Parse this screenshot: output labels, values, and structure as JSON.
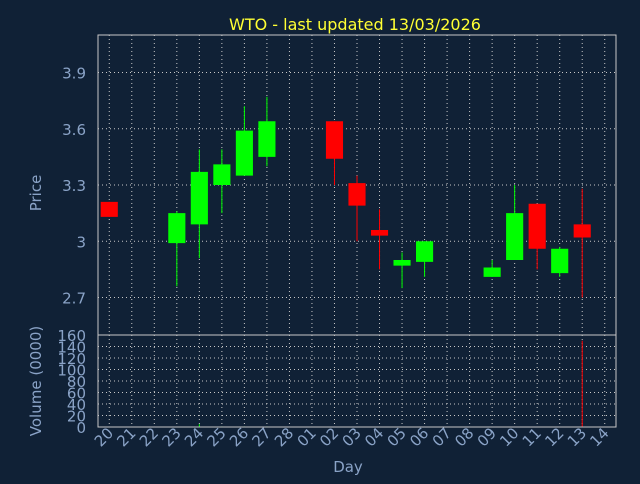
{
  "chart_data": {
    "type": "candlestick",
    "title": "WTO - last updated 13/03/2026",
    "xlabel": "Day",
    "ylabel_price": "Price",
    "ylabel_volume": "Volume (0000)",
    "price_ticks": [
      "2.7",
      "3",
      "3.3",
      "3.6",
      "3.9"
    ],
    "price_tick_values": [
      2.7,
      3.0,
      3.3,
      3.6,
      3.9
    ],
    "price_ylim": [
      2.5,
      4.1
    ],
    "volume_ticks": [
      "0",
      "20",
      "40",
      "60",
      "80",
      "100",
      "120",
      "140",
      "160"
    ],
    "volume_tick_values": [
      0,
      20,
      40,
      60,
      80,
      100,
      120,
      140,
      160
    ],
    "volume_ylim": [
      0,
      160
    ],
    "x_tick_labels": [
      "20",
      "21",
      "22",
      "23",
      "24",
      "25",
      "26",
      "27",
      "28",
      "01",
      "02",
      "03",
      "04",
      "05",
      "06",
      "07",
      "08",
      "09",
      "10",
      "11",
      "12",
      "13",
      "14"
    ],
    "grid": true,
    "colors": {
      "background": "#102136",
      "axis_text": "#8aa3c7",
      "title": "#ffff33",
      "grid": "#c8c8c8",
      "up": "#00ff00",
      "down": "#ff0000"
    },
    "candles": [
      {
        "day": "20",
        "open": 3.21,
        "high": 3.21,
        "low": 3.13,
        "close": 3.13,
        "volume": 0
      },
      {
        "day": "23",
        "open": 2.99,
        "high": 3.16,
        "low": 2.76,
        "close": 3.15,
        "volume": 0
      },
      {
        "day": "24",
        "open": 3.09,
        "high": 3.49,
        "low": 2.91,
        "close": 3.37,
        "volume": 5
      },
      {
        "day": "25",
        "open": 3.3,
        "high": 3.49,
        "low": 3.15,
        "close": 3.41,
        "volume": 1
      },
      {
        "day": "26",
        "open": 3.35,
        "high": 3.72,
        "low": 3.35,
        "close": 3.59,
        "volume": 1
      },
      {
        "day": "27",
        "open": 3.45,
        "high": 3.77,
        "low": 3.4,
        "close": 3.64,
        "volume": 1
      },
      {
        "day": "02",
        "open": 3.64,
        "high": 3.64,
        "low": 3.3,
        "close": 3.44,
        "volume": 0
      },
      {
        "day": "03",
        "open": 3.31,
        "high": 3.35,
        "low": 3.0,
        "close": 3.19,
        "volume": 0
      },
      {
        "day": "04",
        "open": 3.06,
        "high": 3.17,
        "low": 2.85,
        "close": 3.03,
        "volume": 0
      },
      {
        "day": "05",
        "open": 2.87,
        "high": 2.94,
        "low": 2.75,
        "close": 2.9,
        "volume": 0
      },
      {
        "day": "06",
        "open": 2.89,
        "high": 3.0,
        "low": 2.81,
        "close": 3.0,
        "volume": 0
      },
      {
        "day": "09",
        "open": 2.81,
        "high": 2.9,
        "low": 2.81,
        "close": 2.86,
        "volume": 0
      },
      {
        "day": "10",
        "open": 2.9,
        "high": 3.3,
        "low": 2.9,
        "close": 3.15,
        "volume": 0
      },
      {
        "day": "11",
        "open": 3.2,
        "high": 3.2,
        "low": 2.85,
        "close": 2.96,
        "volume": 0
      },
      {
        "day": "12",
        "open": 2.83,
        "high": 2.97,
        "low": 2.81,
        "close": 2.96,
        "volume": 0
      },
      {
        "day": "13",
        "open": 3.09,
        "high": 3.28,
        "low": 2.7,
        "close": 3.02,
        "volume": 150
      }
    ]
  }
}
